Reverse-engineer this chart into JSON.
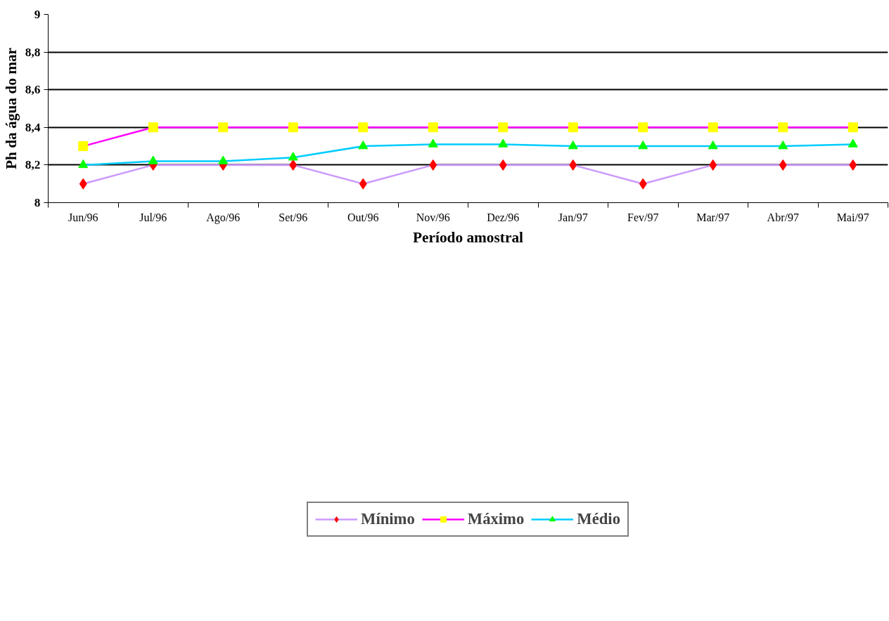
{
  "chart_data": {
    "type": "line",
    "xlabel": "Período amostral",
    "ylabel": "Ph da água do mar",
    "categories": [
      "Jun/96",
      "Jul/96",
      "Ago/96",
      "Set/96",
      "Out/96",
      "Nov/96",
      "Dez/96",
      "Jan/97",
      "Fev/97",
      "Mar/97",
      "Abr/97",
      "Mai/97"
    ],
    "ylim": [
      8,
      9
    ],
    "yticks": [
      8,
      {
        "value": 8.2,
        "label": "8,2"
      },
      {
        "value": 8.4,
        "label": "8,4"
      },
      {
        "value": 8.6,
        "label": "8,6"
      },
      {
        "value": 8.8,
        "label": "8,8"
      },
      9
    ],
    "grid": "y",
    "legend": "bottom",
    "series": [
      {
        "name": "Mínimo",
        "color": "#cc99ff",
        "marker": "diamond",
        "colors": [
          "#ff0000",
          "#ff0000",
          "#ff0000",
          "#ff0000",
          "#ff0000",
          "#ff0000",
          "#ff0000",
          "#ff0000",
          "#ff0000",
          "#ff0000",
          "#ff0000",
          "#ff0000"
        ],
        "values": [
          8.1,
          8.2,
          8.2,
          8.2,
          8.1,
          8.2,
          8.2,
          8.2,
          8.1,
          8.2,
          8.2,
          8.2
        ]
      },
      {
        "name": "Máximo",
        "color": "#ff00ff",
        "marker": "square",
        "colors": [
          "#ffff00",
          "#ffff00",
          "#ffff00",
          "#ffff00",
          "#ffff00",
          "#ffff00",
          "#ffff00",
          "#ffff00",
          "#ffff00",
          "#ffff00",
          "#ffff00",
          "#ffff00"
        ],
        "values": [
          8.3,
          8.4,
          8.4,
          8.4,
          8.4,
          8.4,
          8.4,
          8.4,
          8.4,
          8.4,
          8.4,
          8.4
        ]
      },
      {
        "name": "Médio",
        "color": "#00ccff",
        "marker": "triangle",
        "colors": [
          "#00ff00",
          "#00ff00",
          "#00ff00",
          "#00ff00",
          "#00ff00",
          "#00ff00",
          "#00ff00",
          "#00ff00",
          "#00ff00",
          "#00ff00",
          "#00ff00",
          "#00ff00"
        ],
        "values": [
          8.2,
          8.22,
          8.22,
          8.24,
          8.3,
          8.31,
          8.31,
          8.3,
          8.3,
          8.3,
          8.3,
          8.31
        ]
      }
    ]
  }
}
